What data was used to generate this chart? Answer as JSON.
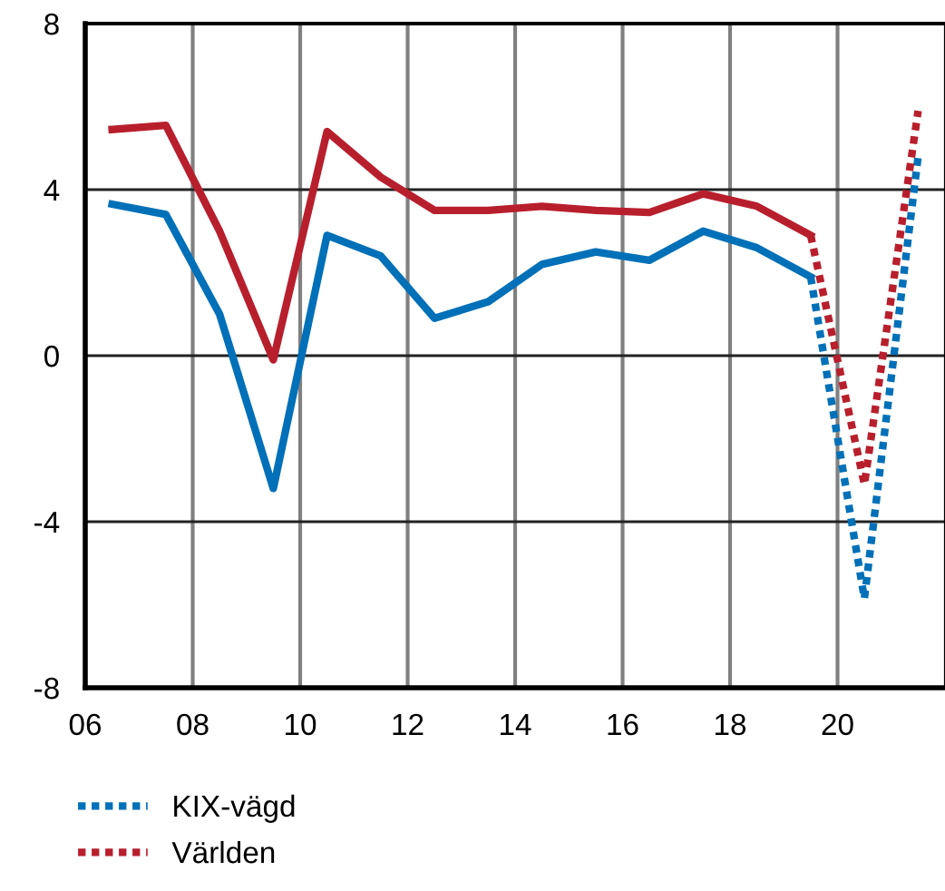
{
  "chart_data": {
    "type": "line",
    "xlim": [
      2006,
      2022
    ],
    "xticks": [
      {
        "value": 2006,
        "label": "06"
      },
      {
        "value": 2008,
        "label": "08"
      },
      {
        "value": 2010,
        "label": "10"
      },
      {
        "value": 2012,
        "label": "12"
      },
      {
        "value": 2014,
        "label": "14"
      },
      {
        "value": 2016,
        "label": "16"
      },
      {
        "value": 2018,
        "label": "18"
      },
      {
        "value": 2020,
        "label": "20"
      }
    ],
    "ylim": [
      -8,
      8
    ],
    "yticks": [
      -8,
      -4,
      0,
      4,
      8
    ],
    "grid": true,
    "legend": "bottom left",
    "series": [
      {
        "color": "#0070b8",
        "line_style": "solid",
        "x": [
          2006.5,
          2007.5,
          2008.5,
          2009.5,
          2010.5,
          2011.5,
          2012.5,
          2013.5,
          2014.5,
          2015.5,
          2016.5,
          2017.5,
          2018.5,
          2019.5
        ],
        "values": [
          3.65,
          3.4,
          1.0,
          -3.2,
          2.9,
          2.4,
          0.9,
          1.3,
          2.2,
          2.5,
          2.3,
          3.0,
          2.6,
          1.9
        ]
      },
      {
        "color": "#b81f2d",
        "line_style": "solid",
        "x": [
          2006.5,
          2007.5,
          2008.5,
          2009.5,
          2010.5,
          2011.5,
          2012.5,
          2013.5,
          2014.5,
          2015.5,
          2016.5,
          2017.5,
          2018.5,
          2019.5
        ],
        "values": [
          5.45,
          5.55,
          3.0,
          -0.1,
          5.4,
          4.3,
          3.5,
          3.5,
          3.6,
          3.5,
          3.45,
          3.9,
          3.6,
          2.9
        ]
      },
      {
        "name": "KIX-vägd",
        "color": "#0070b8",
        "line_style": "dotted",
        "x": [
          2019.5,
          2020.5,
          2021.5
        ],
        "values": [
          1.9,
          -5.85,
          4.8
        ]
      },
      {
        "name": "Världen",
        "color": "#b81f2d",
        "line_style": "dotted",
        "x": [
          2019.5,
          2020.5,
          2021.5
        ],
        "values": [
          2.9,
          -3.1,
          5.9
        ]
      }
    ]
  }
}
